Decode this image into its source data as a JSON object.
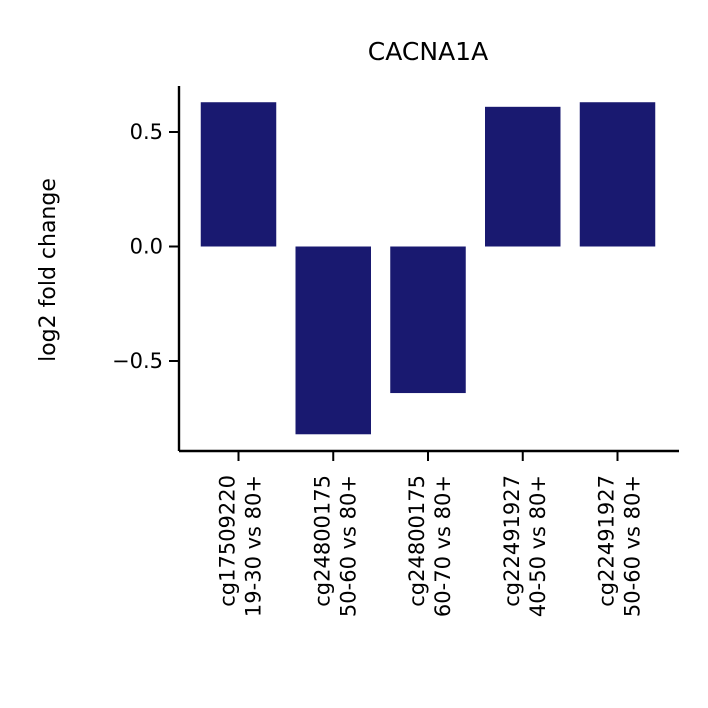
{
  "chart_data": {
    "type": "bar",
    "title": "CACNA1A",
    "xlabel": "",
    "ylabel": "log2 fold change",
    "categories": [
      [
        "cg17509220",
        "19-30 vs 80+"
      ],
      [
        "cg24800175",
        "50-60 vs 80+"
      ],
      [
        "cg24800175",
        "60-70 vs 80+"
      ],
      [
        "cg22491927",
        "40-50 vs 80+"
      ],
      [
        "cg22491927",
        "50-60 vs 80+"
      ]
    ],
    "values": [
      0.63,
      -0.82,
      -0.64,
      0.61,
      0.63
    ],
    "ylim": [
      -0.9,
      0.7
    ],
    "yticks": [
      0.5,
      0.0,
      -0.5
    ],
    "ytick_labels": [
      "0.5",
      "0.0",
      "−0.5"
    ],
    "bar_color": "#191970",
    "grid": false,
    "legend": "none"
  }
}
